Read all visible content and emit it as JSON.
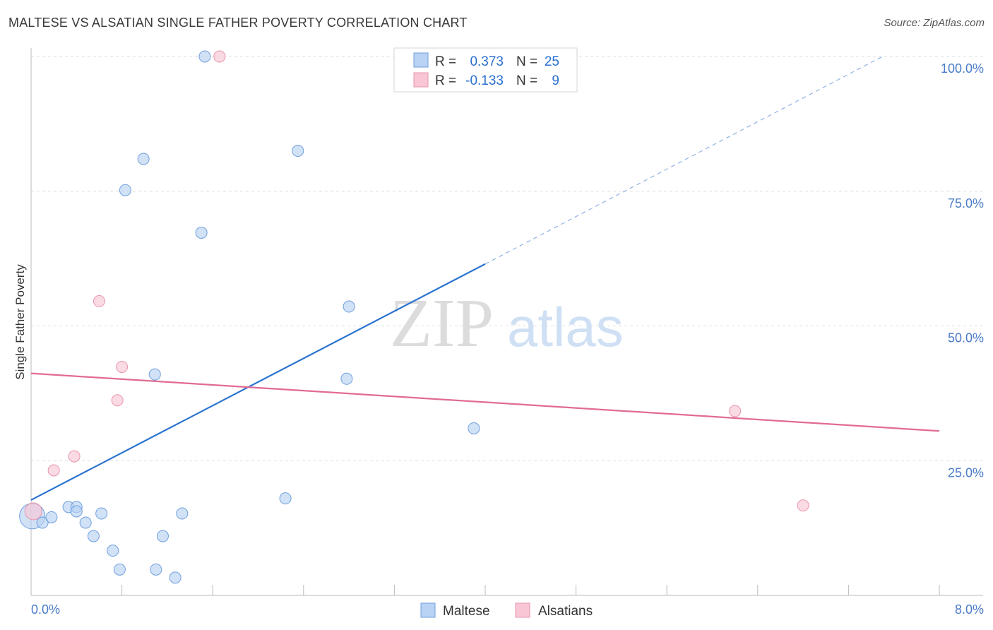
{
  "header": {
    "title": "MALTESE VS ALSATIAN SINGLE FATHER POVERTY CORRELATION CHART",
    "source": "Source: ZipAtlas.com"
  },
  "watermark": {
    "zip": "ZIP",
    "atlas": "atlas"
  },
  "chart_data": {
    "type": "scatter",
    "title": "MALTESE VS ALSATIAN SINGLE FATHER POVERTY CORRELATION CHART",
    "xlabel": "",
    "ylabel": "Single Father Poverty",
    "xlim": [
      0,
      8
    ],
    "ylim": [
      0,
      100
    ],
    "x_tick_labels": {
      "min": "0.0%",
      "max": "8.0%"
    },
    "y_ticks": [
      {
        "value": 100,
        "label": "100.0%"
      },
      {
        "value": 75,
        "label": "75.0%"
      },
      {
        "value": 50,
        "label": "50.0%"
      },
      {
        "value": 25,
        "label": "25.0%"
      }
    ],
    "legend_entries": [
      {
        "name": "Maltese",
        "r_label": "R = ",
        "r": "0.373",
        "n_label": "N = ",
        "n": "25"
      },
      {
        "name": "Alsatians",
        "r_label": "R = ",
        "r": "-0.133",
        "n_label": "N = ",
        "n": "9"
      }
    ],
    "colors": {
      "maltese_fill": "#b8d3f3",
      "maltese_stroke": "#6f9fdc",
      "maltese_line": "#2b73cf",
      "alsatians_fill": "#f8c6d4",
      "alsatians_stroke": "#e895ad",
      "alsatians_line": "#e26b93",
      "value_text": "#2b6fd0",
      "grid": "#dddddd"
    },
    "series": [
      {
        "name": "Maltese",
        "points": [
          [
            0.01,
            14.7,
            18
          ],
          [
            0.1,
            13.5,
            8
          ],
          [
            0.18,
            14.5,
            8
          ],
          [
            0.33,
            16.4,
            8
          ],
          [
            0.4,
            16.4,
            8
          ],
          [
            0.4,
            15.6,
            8
          ],
          [
            0.48,
            13.5,
            8
          ],
          [
            0.55,
            11,
            8
          ],
          [
            0.62,
            15.2,
            8
          ],
          [
            0.72,
            8.3,
            8
          ],
          [
            0.78,
            4.8,
            8
          ],
          [
            0.83,
            75.2,
            8
          ],
          [
            0.99,
            81,
            8
          ],
          [
            1.09,
            41,
            8
          ],
          [
            1.16,
            11,
            8
          ],
          [
            1.1,
            4.8,
            8
          ],
          [
            1.27,
            3.3,
            8
          ],
          [
            1.33,
            15.2,
            8
          ],
          [
            1.5,
            67.3,
            8
          ],
          [
            1.53,
            100,
            8
          ],
          [
            2.24,
            18,
            8
          ],
          [
            2.35,
            82.5,
            8
          ],
          [
            2.78,
            40.2,
            8
          ],
          [
            2.8,
            53.6,
            8
          ],
          [
            3.9,
            31,
            8
          ]
        ],
        "trend": {
          "x0": 0,
          "y0": 17.7,
          "x1": 4.0,
          "y1": 61.5,
          "x_end": 7.5,
          "y_end": 100
        }
      },
      {
        "name": "Alsatians",
        "points": [
          [
            0.02,
            15.6,
            12
          ],
          [
            0.2,
            23.2,
            8
          ],
          [
            0.38,
            25.8,
            8
          ],
          [
            0.6,
            54.6,
            8
          ],
          [
            0.76,
            36.2,
            8
          ],
          [
            0.8,
            42.4,
            8
          ],
          [
            1.66,
            100,
            8
          ],
          [
            6.2,
            34.2,
            8
          ],
          [
            6.8,
            16.7,
            8
          ]
        ],
        "trend": {
          "x0": 0,
          "y0": 41.2,
          "x1": 8.0,
          "y1": 30.5
        }
      }
    ]
  }
}
